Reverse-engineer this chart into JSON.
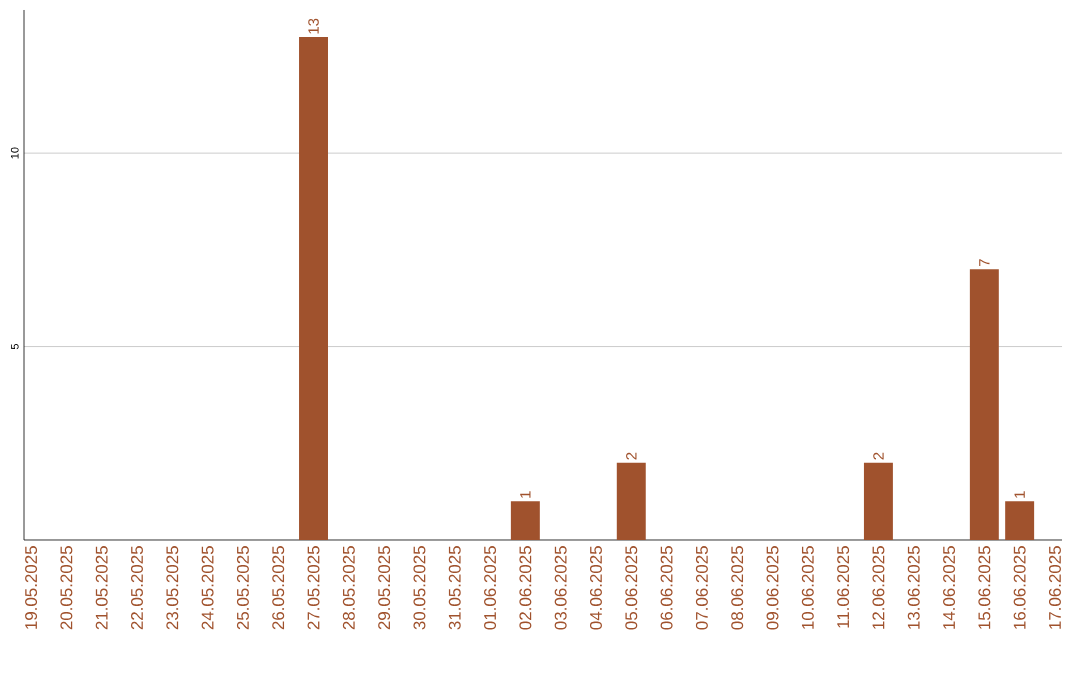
{
  "chart_data": {
    "type": "bar",
    "categories": [
      "19.05.2025",
      "20.05.2025",
      "21.05.2025",
      "22.05.2025",
      "23.05.2025",
      "24.05.2025",
      "25.05.2025",
      "26.05.2025",
      "27.05.2025",
      "28.05.2025",
      "29.05.2025",
      "30.05.2025",
      "31.05.2025",
      "01.06.2025",
      "02.06.2025",
      "03.06.2025",
      "04.06.2025",
      "05.06.2025",
      "06.06.2025",
      "07.06.2025",
      "08.06.2025",
      "09.06.2025",
      "10.06.2025",
      "11.06.2025",
      "12.06.2025",
      "13.06.2025",
      "14.06.2025",
      "15.06.2025",
      "16.06.2025",
      "17.06.2025"
    ],
    "values": [
      0,
      0,
      0,
      0,
      0,
      0,
      0,
      0,
      13,
      0,
      0,
      0,
      0,
      0,
      1,
      0,
      0,
      2,
      0,
      0,
      0,
      0,
      0,
      0,
      2,
      0,
      0,
      7,
      1,
      0
    ],
    "value_labels": [
      null,
      null,
      null,
      null,
      null,
      null,
      null,
      null,
      "13",
      null,
      null,
      null,
      null,
      null,
      "1",
      null,
      null,
      "2",
      null,
      null,
      null,
      null,
      null,
      null,
      "2",
      null,
      null,
      "7",
      "1",
      null
    ],
    "color": "#a0522d",
    "ylim": [
      0,
      13.7
    ],
    "yticks": [
      5,
      10
    ],
    "grid": "y"
  }
}
